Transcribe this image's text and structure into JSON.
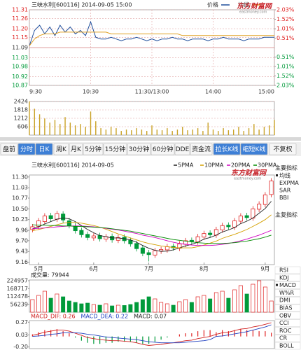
{
  "chart_data": [
    {
      "type": "line",
      "title": "三峡水利[600116] 2014-09-05 15:00",
      "xlim": [
        0,
        240
      ],
      "xticks": [
        {
          "value": 0,
          "label": "9:30"
        },
        {
          "value": 60,
          "label": "10:30"
        },
        {
          "value": 120,
          "label": "11:30/13:00"
        },
        {
          "value": 180,
          "label": "14:00"
        },
        {
          "value": 240,
          "label": "15:00"
        }
      ],
      "x": [
        0,
        5,
        10,
        15,
        20,
        25,
        30,
        35,
        40,
        45,
        50,
        55,
        60,
        65,
        70,
        75,
        80,
        85,
        90,
        95,
        100,
        105,
        110,
        115,
        120,
        125,
        130,
        135,
        140,
        145,
        150,
        155,
        160,
        165,
        170,
        175,
        180,
        185,
        190,
        195,
        200,
        205,
        210,
        215,
        220,
        225,
        230,
        235,
        240
      ],
      "ylim": [
        10.87,
        11.31
      ],
      "yticks": [
        {
          "value": 11.31,
          "label": "11.31"
        },
        {
          "value": 11.26,
          "label": "11.26"
        },
        {
          "value": 11.2,
          "label": "11.20"
        },
        {
          "value": 11.15,
          "label": "11.15"
        },
        {
          "value": 11.09,
          "label": "11.09"
        },
        {
          "value": 11.03,
          "label": "11.03"
        },
        {
          "value": 10.98,
          "label": "10.98"
        },
        {
          "value": 10.92,
          "label": "10.92"
        },
        {
          "value": 10.87,
          "label": "10.87"
        }
      ],
      "y2lim": [
        -2.03,
        2.03
      ],
      "y2ticks": [
        {
          "value": 2.03,
          "label": "2.03%"
        },
        {
          "value": 1.52,
          "label": "1.52%"
        },
        {
          "value": 1.01,
          "label": "1.01%"
        },
        {
          "value": 0.51,
          "label": "0.51%"
        },
        {
          "value": -0.51,
          "label": "0.51%"
        },
        {
          "value": -1.01,
          "label": "1.01%"
        },
        {
          "value": -1.52,
          "label": "1.52%"
        },
        {
          "value": -2.03,
          "label": "2.03%"
        }
      ],
      "grid": true,
      "series": [
        {
          "name": "价格",
          "color": "#1f4e9c",
          "values": [
            11.1,
            11.19,
            11.22,
            11.17,
            11.21,
            11.16,
            11.22,
            11.18,
            11.21,
            11.17,
            11.19,
            11.16,
            11.24,
            11.15,
            11.14,
            11.14,
            11.15,
            11.14,
            11.13,
            11.14,
            11.14,
            11.15,
            11.14,
            11.13,
            11.14,
            11.13,
            11.14,
            11.14,
            11.15,
            11.14,
            11.14,
            11.13,
            11.14,
            11.14,
            11.14,
            11.13,
            11.14,
            11.14,
            11.15,
            11.14,
            11.14,
            11.14,
            11.13,
            11.14,
            11.14,
            11.14,
            11.15,
            11.15,
            11.15
          ]
        },
        {
          "name": "均线",
          "color": "#e0a020",
          "values": [
            11.1,
            11.14,
            11.16,
            11.17,
            11.17,
            11.17,
            11.18,
            11.18,
            11.18,
            11.18,
            11.18,
            11.18,
            11.18,
            11.18,
            11.18,
            11.18,
            11.17,
            11.17,
            11.17,
            11.17,
            11.17,
            11.17,
            11.17,
            11.17,
            11.17,
            11.17,
            11.17,
            11.17,
            11.17,
            11.17,
            11.16,
            11.16,
            11.16,
            11.16,
            11.16,
            11.16,
            11.16,
            11.16,
            11.16,
            11.16,
            11.16,
            11.16,
            11.16,
            11.16,
            11.16,
            11.16,
            11.16,
            11.16,
            11.16
          ]
        }
      ]
    },
    {
      "type": "bar",
      "color": "#c9a227",
      "xlim": [
        0,
        240
      ],
      "x": [
        0,
        5,
        10,
        15,
        20,
        25,
        30,
        35,
        40,
        45,
        50,
        55,
        60,
        65,
        70,
        75,
        80,
        85,
        90,
        95,
        100,
        105,
        110,
        115,
        120,
        125,
        130,
        135,
        140,
        145,
        150,
        155,
        160,
        165,
        170,
        175,
        180,
        185,
        190,
        195,
        200,
        205,
        210,
        215,
        220,
        225,
        230,
        235,
        240
      ],
      "ylim": [
        0,
        2424
      ],
      "yticks": [
        2424,
        1818,
        1212,
        606
      ],
      "values": [
        2424,
        1900,
        1500,
        1200,
        900,
        1100,
        800,
        1300,
        900,
        700,
        800,
        600,
        1700,
        1000,
        500,
        400,
        600,
        500,
        300,
        400,
        350,
        500,
        400,
        300,
        700,
        400,
        350,
        500,
        300,
        400,
        600,
        350,
        400,
        500,
        300,
        900,
        400,
        300,
        500,
        350,
        400,
        600,
        300,
        500,
        800,
        400,
        600,
        700,
        1100
      ]
    },
    {
      "type": "candlestick",
      "title": "三峡水利[600116] 2014-09-05",
      "categories": [
        null,
        "5月",
        null,
        null,
        null,
        null,
        null,
        null,
        null,
        null,
        "6月",
        null,
        null,
        null,
        null,
        null,
        null,
        null,
        null,
        "7月",
        null,
        null,
        null,
        null,
        null,
        null,
        null,
        null,
        "8月",
        null,
        null,
        null,
        null,
        null,
        null,
        null,
        null,
        null,
        "9月",
        null
      ],
      "open": [
        9.98,
        10.06,
        10.18,
        10.33,
        10.24,
        10.37,
        10.2,
        10.07,
        9.96,
        9.86,
        9.77,
        9.83,
        9.74,
        9.81,
        9.71,
        9.79,
        9.71,
        9.63,
        9.52,
        9.4,
        9.34,
        9.44,
        9.47,
        9.56,
        9.51,
        9.61,
        9.71,
        9.67,
        9.79,
        9.89,
        9.84,
        9.97,
        10.09,
        10.04,
        10.19,
        10.33,
        10.27,
        10.49,
        10.61,
        10.86
      ],
      "high": [
        10.12,
        10.27,
        10.39,
        10.4,
        10.45,
        10.44,
        10.27,
        10.14,
        10.03,
        9.93,
        9.89,
        9.9,
        9.87,
        9.88,
        9.85,
        9.86,
        9.78,
        9.7,
        9.59,
        9.47,
        9.52,
        9.55,
        9.62,
        9.63,
        9.69,
        9.77,
        9.78,
        9.87,
        9.95,
        9.96,
        10.05,
        10.15,
        10.16,
        10.27,
        10.39,
        10.4,
        10.57,
        10.69,
        10.92,
        11.27
      ],
      "low": [
        9.91,
        9.99,
        10.11,
        10.18,
        10.17,
        10.15,
        10.01,
        9.88,
        9.78,
        9.71,
        9.7,
        9.68,
        9.67,
        9.65,
        9.64,
        9.63,
        9.55,
        9.43,
        9.31,
        9.18,
        9.27,
        9.37,
        9.4,
        9.45,
        9.44,
        9.54,
        9.61,
        9.6,
        9.72,
        9.78,
        9.77,
        9.9,
        9.98,
        9.97,
        10.12,
        10.21,
        10.2,
        10.42,
        10.54,
        10.79
      ],
      "close": [
        10.05,
        10.2,
        10.32,
        10.25,
        10.38,
        10.22,
        10.08,
        9.95,
        9.85,
        9.78,
        9.82,
        9.75,
        9.8,
        9.72,
        9.78,
        9.7,
        9.62,
        9.5,
        9.38,
        9.35,
        9.45,
        9.48,
        9.55,
        9.52,
        9.62,
        9.7,
        9.68,
        9.8,
        9.88,
        9.85,
        9.98,
        10.08,
        10.05,
        10.2,
        10.32,
        10.28,
        10.5,
        10.62,
        10.85,
        11.2
      ],
      "up_color": "#e02020",
      "down_color": "#009a3a",
      "ylim": [
        9.1,
        11.35
      ],
      "yticks": [
        {
          "value": 11.3,
          "label": "11.30"
        },
        {
          "value": 11.03,
          "label": "11.03"
        },
        {
          "value": 10.77,
          "label": "10.77"
        },
        {
          "value": 10.5,
          "label": "10.50"
        },
        {
          "value": 10.23,
          "label": "10.23"
        },
        {
          "value": 9.96,
          "label": "9.96"
        },
        {
          "value": 9.7,
          "label": "9.70"
        },
        {
          "value": 9.43,
          "label": "9.43"
        },
        {
          "value": 9.16,
          "label": "9.16"
        }
      ],
      "series": [
        {
          "name": "5PMA",
          "color": "#202020",
          "values": [
            10.0,
            10.05,
            10.12,
            10.18,
            10.24,
            10.27,
            10.25,
            10.18,
            10.08,
            9.98,
            9.9,
            9.83,
            9.8,
            9.77,
            9.77,
            9.75,
            9.72,
            9.66,
            9.58,
            9.51,
            9.46,
            9.43,
            9.44,
            9.47,
            9.52,
            9.57,
            9.61,
            9.66,
            9.74,
            9.78,
            9.84,
            9.92,
            9.97,
            10.03,
            10.13,
            10.19,
            10.27,
            10.39,
            10.51,
            10.69
          ]
        },
        {
          "name": "10PMA",
          "color": "#d4a000",
          "values": [
            9.95,
            9.98,
            10.02,
            10.06,
            10.1,
            10.14,
            10.16,
            10.16,
            10.14,
            10.11,
            10.08,
            10.04,
            9.99,
            9.93,
            9.87,
            9.82,
            9.77,
            9.72,
            9.67,
            9.63,
            9.6,
            9.57,
            9.55,
            9.53,
            9.52,
            9.52,
            9.52,
            9.55,
            9.59,
            9.64,
            9.69,
            9.76,
            9.81,
            9.86,
            9.92,
            9.98,
            10.06,
            10.14,
            10.23,
            10.35
          ]
        },
        {
          "name": "20PMA",
          "color": "#d000c0",
          "values": [
            10.0,
            10.01,
            10.02,
            10.03,
            10.05,
            10.06,
            10.07,
            10.07,
            10.07,
            10.06,
            10.05,
            10.03,
            10.01,
            9.99,
            9.97,
            9.94,
            9.91,
            9.88,
            9.84,
            9.81,
            9.78,
            9.74,
            9.7,
            9.66,
            9.63,
            9.61,
            9.59,
            9.58,
            9.58,
            9.58,
            9.59,
            9.61,
            9.63,
            9.66,
            9.7,
            9.74,
            9.79,
            9.84,
            9.9,
            9.96
          ]
        },
        {
          "name": "30PMA",
          "color": "#008a00",
          "values": [
            10.1,
            10.09,
            10.09,
            10.08,
            10.08,
            10.07,
            10.07,
            10.06,
            10.06,
            10.05,
            10.04,
            10.03,
            10.02,
            10.0,
            9.98,
            9.96,
            9.94,
            9.91,
            9.88,
            9.85,
            9.82,
            9.79,
            9.76,
            9.73,
            9.71,
            9.69,
            9.67,
            9.65,
            9.64,
            9.63,
            9.63,
            9.63,
            9.64,
            9.65,
            9.67,
            9.69,
            9.72,
            9.75,
            9.79,
            9.84
          ]
        }
      ]
    },
    {
      "type": "bar",
      "title": "成交量: 79944",
      "ylim": [
        0,
        230000
      ],
      "yticks": [
        224957,
        168717,
        112478,
        56239
      ],
      "values": [
        90000,
        120000,
        150000,
        100000,
        130000,
        110000,
        80000,
        70000,
        60000,
        65000,
        55000,
        50000,
        60000,
        45000,
        50000,
        48000,
        55000,
        70000,
        90000,
        110000,
        95000,
        70000,
        60000,
        50000,
        75000,
        90000,
        70000,
        110000,
        120000,
        95000,
        140000,
        150000,
        100000,
        160000,
        190000,
        130000,
        200000,
        224957,
        180000,
        79944
      ]
    },
    {
      "type": "macd",
      "legend": [
        "MACD_DIF: 0.26",
        "MACD_DEA: 0.22",
        "MACD: 0.07"
      ],
      "ylim": [
        -0.23,
        0.3
      ],
      "yticks": [
        {
          "value": 0.27,
          "label": "0.27"
        },
        {
          "value": 0.03,
          "label": "0.03"
        },
        {
          "value": -0.2,
          "label": "-0.20"
        }
      ],
      "series": [
        {
          "color": "#d02020",
          "values": [
            0.02,
            0.05,
            0.08,
            0.1,
            0.12,
            0.12,
            0.1,
            0.06,
            0.02,
            -0.02,
            -0.04,
            -0.06,
            -0.07,
            -0.08,
            -0.08,
            -0.09,
            -0.1,
            -0.12,
            -0.15,
            -0.17,
            -0.16,
            -0.15,
            -0.13,
            -0.12,
            -0.1,
            -0.08,
            -0.07,
            -0.04,
            -0.02,
            0.0,
            0.04,
            0.07,
            0.08,
            0.11,
            0.14,
            0.15,
            0.18,
            0.2,
            0.23,
            0.26
          ]
        },
        {
          "color": "#2040c0",
          "values": [
            0.0,
            0.01,
            0.02,
            0.04,
            0.05,
            0.07,
            0.07,
            0.07,
            0.06,
            0.04,
            0.03,
            0.01,
            -0.01,
            -0.02,
            -0.03,
            -0.04,
            -0.05,
            -0.06,
            -0.08,
            -0.1,
            -0.11,
            -0.12,
            -0.12,
            -0.12,
            -0.12,
            -0.11,
            -0.1,
            -0.09,
            -0.08,
            -0.06,
            0.0,
            0.01,
            0.03,
            0.05,
            0.07,
            0.09,
            0.12,
            0.15,
            0.18,
            0.22
          ]
        }
      ],
      "histogram": [
        0.04,
        0.08,
        0.12,
        0.12,
        0.14,
        0.1,
        0.06,
        -0.02,
        -0.08,
        -0.12,
        -0.14,
        -0.14,
        -0.12,
        -0.12,
        -0.1,
        -0.1,
        -0.1,
        -0.12,
        -0.14,
        -0.14,
        -0.1,
        -0.06,
        -0.02,
        0.0,
        0.04,
        0.06,
        0.06,
        0.1,
        0.12,
        0.12,
        0.08,
        0.12,
        0.1,
        0.12,
        0.14,
        0.12,
        0.12,
        0.1,
        0.1,
        0.07
      ],
      "up_color": "#e02020",
      "down_color": "#009a3a"
    }
  ],
  "toolbar": {
    "buttons": [
      "盘前",
      "分时",
      "日K",
      "周K",
      "月K",
      "5分钟",
      "15分钟",
      "30分钟",
      "60分钟",
      "DDE",
      "资金流",
      "拉长K线",
      "缩短K线",
      "不复权"
    ]
  },
  "logo": {
    "name": "东方财富网",
    "url": "eastmoney.com"
  },
  "indicators": {
    "main_title": "主要指标",
    "main": [
      "均线",
      "EXPMA",
      "SAR",
      "BBI"
    ],
    "sub_title": "主复指标",
    "sub": [
      "RSI",
      "KDJ",
      "MACD",
      "W%R",
      "DMI",
      "BIAS",
      "OBV",
      "CCI",
      "ROC",
      "CR",
      "BOLL"
    ]
  }
}
